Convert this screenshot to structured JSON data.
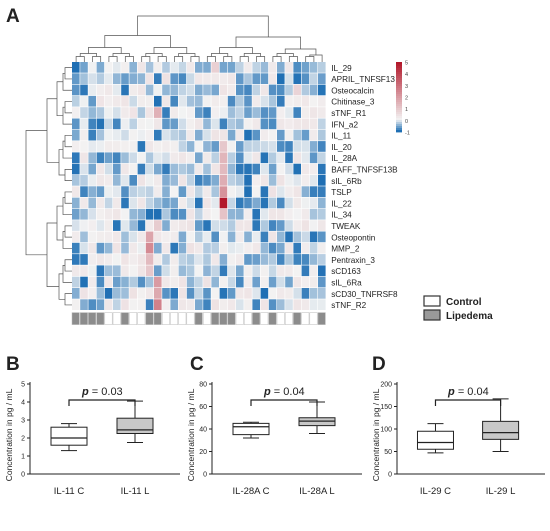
{
  "panels": {
    "A": "A",
    "B": "B",
    "C": "C",
    "D": "D"
  },
  "heatmap": {
    "rows": [
      "IL_29",
      "APRIL_TNFSF13",
      "Osteocalcin",
      "Chitinase_3",
      "sTNF_R1",
      "IFN_a2",
      "IL_11",
      "IL_20",
      "IL_28A",
      "BAFF_TNFSF13B",
      "sIL_6Rb",
      "TSLP",
      "IL_22",
      "IL_34",
      "TWEAK",
      "Osteopontin",
      "MMP_2",
      "Pentraxin_3",
      "sCD163",
      "sIL_6Ra",
      "sCD30_TNFRSF8",
      "sTNF_R2"
    ],
    "n_cols": 31,
    "color_scale": {
      "min": -1,
      "max": 5,
      "low_color": "#1f6fb4",
      "mid_color": "#f3f3f3",
      "high_color": "#b2182b",
      "ticks": [
        "5",
        "4",
        "3",
        "2",
        "1",
        "0",
        "-1"
      ]
    },
    "group_bar": [
      1,
      1,
      1,
      1,
      0,
      0,
      1,
      0,
      0,
      1,
      1,
      0,
      0,
      0,
      0,
      1,
      0,
      1,
      1,
      1,
      0,
      0,
      1,
      0,
      1,
      0,
      0,
      1,
      0,
      0,
      1
    ],
    "legend": [
      {
        "label": "Control",
        "color": "#ffffff"
      },
      {
        "label": "Lipedema",
        "color": "#9a9a9a"
      }
    ],
    "hot_cells": [
      {
        "row": 12,
        "col": 18,
        "value": 5.0
      },
      {
        "row": 11,
        "col": 18,
        "value": 2.2
      },
      {
        "row": 8,
        "col": 18,
        "value": 1.4
      },
      {
        "row": 9,
        "col": 18,
        "value": 1.3
      },
      {
        "row": 10,
        "col": 18,
        "value": 1.6
      },
      {
        "row": 13,
        "col": 18,
        "value": 1.1
      },
      {
        "row": 7,
        "col": 18,
        "value": 1.0
      },
      {
        "row": 15,
        "col": 9,
        "value": 1.8
      },
      {
        "row": 16,
        "col": 9,
        "value": 2.4
      },
      {
        "row": 17,
        "col": 9,
        "value": 1.3
      },
      {
        "row": 18,
        "col": 9,
        "value": 1.0
      },
      {
        "row": 19,
        "col": 10,
        "value": 2.0
      },
      {
        "row": 20,
        "col": 10,
        "value": 1.7
      },
      {
        "row": 21,
        "col": 10,
        "value": 2.6
      },
      {
        "row": 14,
        "col": 10,
        "value": 0.9
      },
      {
        "row": 4,
        "col": 10,
        "value": 1.5
      },
      {
        "row": 0,
        "col": 17,
        "value": 0.8
      },
      {
        "row": 2,
        "col": 27,
        "value": 0.7
      }
    ]
  },
  "chart_data": [
    {
      "type": "box",
      "panel": "B",
      "categories": [
        "IL-11 C",
        "IL-11 L"
      ],
      "ylabel": "Concentration in pg / mL",
      "ylim": [
        0,
        5
      ],
      "yticks": [
        0,
        1,
        2,
        3,
        4,
        5
      ],
      "p_label": "p",
      "p_value": "= 0.03",
      "boxes": [
        {
          "category": "IL-11 C",
          "min": 1.3,
          "q1": 1.6,
          "median": 2.0,
          "q3": 2.6,
          "max": 2.8,
          "fill": "#ffffff"
        },
        {
          "category": "IL-11 L",
          "min": 1.75,
          "q1": 2.25,
          "median": 2.45,
          "q3": 3.1,
          "max": 4.05,
          "fill": "#c8c8c8"
        }
      ]
    },
    {
      "type": "box",
      "panel": "C",
      "categories": [
        "IL-28A C",
        "IL-28A L"
      ],
      "ylabel": "Concentration in pg / mL",
      "ylim": [
        0,
        80
      ],
      "yticks": [
        0,
        20,
        40,
        60,
        80
      ],
      "p_label": "p",
      "p_value": "= 0.04",
      "boxes": [
        {
          "category": "IL-28A C",
          "min": 32,
          "q1": 35,
          "median": 42,
          "q3": 45,
          "max": 46,
          "fill": "#ffffff"
        },
        {
          "category": "IL-28A L",
          "min": 36,
          "q1": 43,
          "median": 47,
          "q3": 50,
          "max": 64,
          "fill": "#c8c8c8"
        }
      ]
    },
    {
      "type": "box",
      "panel": "D",
      "categories": [
        "IL-29 C",
        "IL-29 L"
      ],
      "ylabel": "Concentration in pg / mL",
      "ylim": [
        0,
        200
      ],
      "yticks": [
        0,
        50,
        100,
        150,
        200
      ],
      "p_label": "p",
      "p_value": "= 0.04",
      "boxes": [
        {
          "category": "IL-29 C",
          "min": 47,
          "q1": 55,
          "median": 70,
          "q3": 95,
          "max": 112,
          "fill": "#ffffff"
        },
        {
          "category": "IL-29 L",
          "min": 50,
          "q1": 77,
          "median": 92,
          "q3": 117,
          "max": 167,
          "fill": "#c8c8c8"
        }
      ]
    }
  ]
}
